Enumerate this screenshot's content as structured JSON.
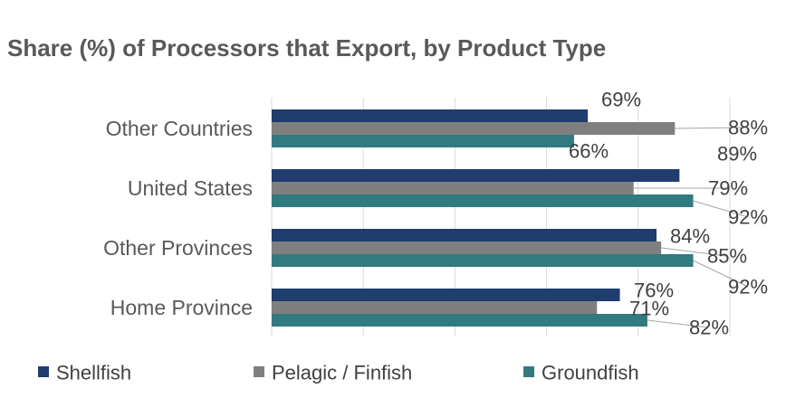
{
  "chart_data": {
    "type": "bar",
    "orientation": "horizontal",
    "title": "Share (%) of Processors that Export, by Product Type",
    "categories": [
      "Other Countries",
      "United States",
      "Other Provinces",
      "Home Province"
    ],
    "series": [
      {
        "name": "Shellfish",
        "color": "#1f3d6e",
        "values": [
          69,
          89,
          84,
          76
        ],
        "labels": [
          "69%",
          "89%",
          "84%",
          "76%"
        ]
      },
      {
        "name": "Pelagic / Finfish",
        "color": "#7f7f7f",
        "values": [
          88,
          79,
          85,
          71
        ],
        "labels": [
          "88%",
          "79%",
          "85%",
          "71%"
        ]
      },
      {
        "name": "Groundfish",
        "color": "#317a80",
        "values": [
          66,
          92,
          92,
          82
        ],
        "labels": [
          "66%",
          "92%",
          "92%",
          "82%"
        ]
      }
    ],
    "xlim": [
      0,
      100
    ],
    "grid": true,
    "legend_position": "bottom",
    "xlabel": "",
    "ylabel": ""
  }
}
